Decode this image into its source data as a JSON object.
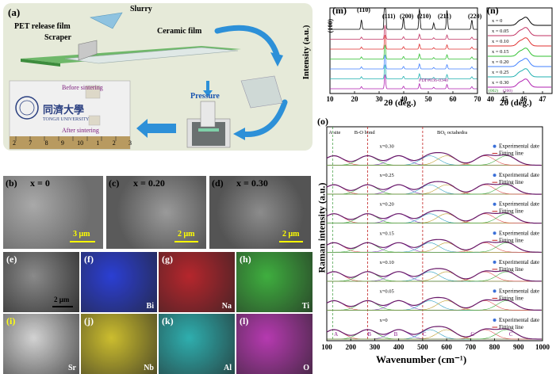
{
  "panel_a": {
    "label": "(a)",
    "slurry": "Slurry",
    "pet_film": "PET release film",
    "scraper": "Scraper",
    "ceramic_film": "Ceramic film",
    "pressure": "Pressure",
    "before": "Before sintering",
    "after": "After sintering",
    "chinese_name": "同濟大學",
    "university": "TONGJI UNIVERSITY",
    "ruler_numbers": [
      "2",
      "7",
      "8",
      "9",
      "10",
      "1",
      "2",
      "3"
    ]
  },
  "sem": [
    {
      "label": "(b)",
      "x": "x = 0",
      "scale": "3 μm"
    },
    {
      "label": "(c)",
      "x": "x = 0.20",
      "scale": "2 μm"
    },
    {
      "label": "(d)",
      "x": "x = 0.30",
      "scale": "2 μm"
    }
  ],
  "eds": [
    {
      "label": "(e)",
      "element": "",
      "scale": "2 μm",
      "color": "#8a8a8a"
    },
    {
      "label": "(f)",
      "element": "Bi",
      "color": "#1a2fd0"
    },
    {
      "label": "(g)",
      "element": "Na",
      "color": "#b0141c"
    },
    {
      "label": "(h)",
      "element": "Ti",
      "color": "#2fa82f"
    },
    {
      "label": "(i)",
      "element": "Sr",
      "color": "#cfcfcf"
    },
    {
      "label": "(j)",
      "element": "Nb",
      "color": "#c8b81e"
    },
    {
      "label": "(k)",
      "element": "Al",
      "color": "#1ea8a8"
    },
    {
      "label": "(l)",
      "element": "O",
      "color": "#b02aaa"
    }
  ],
  "xrd": {
    "label": "(m)",
    "ylabel": "Intensity (a.u.)",
    "xlabel": "2θ (deg.)",
    "xticks": [
      "10",
      "20",
      "30",
      "40",
      "50",
      "60",
      "70"
    ],
    "peaks": [
      "(100)",
      "(110)",
      "(111)",
      "(200)",
      "(210)",
      "(211)",
      "(220)"
    ],
    "pdf": "PDF#036-0340"
  },
  "xrd_zoom": {
    "label": "(n)",
    "xlabel": "2θ (deg.)",
    "xticks": [
      "45",
      "46",
      "47"
    ],
    "xtick_left": "40",
    "legend": [
      "x = 0.30",
      "x = 0.25",
      "x = 0.20",
      "x = 0.15",
      "x = 0.10",
      "x = 0.05",
      "x = 0"
    ],
    "hkl": [
      "(002)",
      "(200)"
    ]
  },
  "raman": {
    "label": "(o)",
    "ylabel": "Raman intensity (a.u.)",
    "xlabel": "Wavenumber (cm⁻¹)",
    "xticks": [
      "100",
      "200",
      "300",
      "400",
      "500",
      "600",
      "700",
      "800",
      "900",
      "1000"
    ],
    "regions": [
      "A site",
      "B-O bond",
      "BO₆ octahedra"
    ],
    "legend_exp": "Experimental date",
    "legend_fit": "Fitting line",
    "compositions": [
      "x=0.30",
      "x=0.25",
      "x=0.20",
      "x=0.15",
      "x=0.10",
      "x=0.05",
      "x=0"
    ],
    "modes": [
      "A",
      "B",
      "B",
      "C",
      "C",
      "C"
    ]
  },
  "colors": {
    "xrd": [
      "#b020b0",
      "#20b0b0",
      "#4080ff",
      "#30c030",
      "#e03030",
      "#c03060",
      "#000000"
    ],
    "raman_exp": "#3a6fd8",
    "raman_fit": "#c02020"
  }
}
